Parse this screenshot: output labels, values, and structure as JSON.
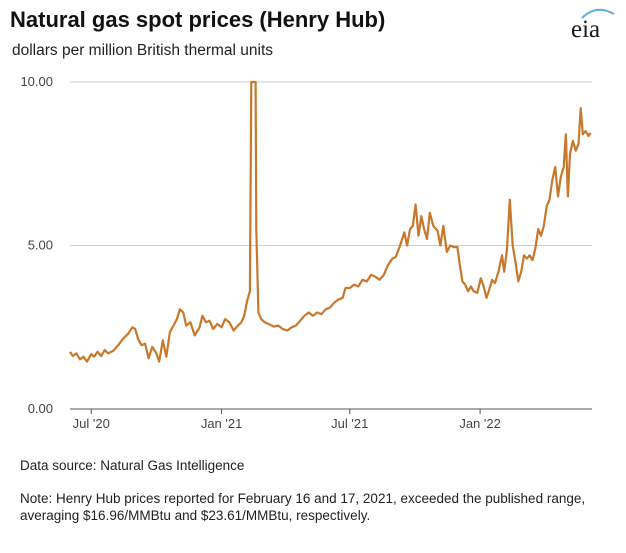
{
  "header": {
    "title": "Natural gas spot prices (Henry Hub)",
    "subtitle": "dollars per million British thermal units",
    "logo_text": "eia"
  },
  "footer": {
    "source": "Data source: Natural Gas Intelligence",
    "note": "Note: Henry Hub prices reported for February 16 and 17, 2021, exceeded the published range, averaging $16.96/MMBtu and $23.61/MMBtu, respectively."
  },
  "colors": {
    "line": "#c8782a",
    "grid": "#cccccc",
    "axis": "#555555",
    "logo_swoosh": "#6aaed6"
  },
  "chart_data": {
    "type": "line",
    "title": "Natural gas spot prices (Henry Hub)",
    "subtitle": "dollars per million British thermal units",
    "ylim": [
      0,
      10
    ],
    "xlim": [
      "2020-06-01",
      "2022-06-08"
    ],
    "yticks": [
      0,
      5,
      10
    ],
    "ytick_labels": [
      "0.00",
      "5.00",
      "10.00"
    ],
    "xticks": [
      "2020-07-01",
      "2021-01-01",
      "2021-07-01",
      "2022-01-01"
    ],
    "xtick_labels": [
      "Jul '20",
      "Jan '21",
      "Jul '21",
      "Jan '22"
    ],
    "grid": "horizontal",
    "series": [
      {
        "color": "#c8782a",
        "points": [
          [
            "2020-06-01",
            1.75
          ],
          [
            "2020-06-05",
            1.62
          ],
          [
            "2020-06-10",
            1.7
          ],
          [
            "2020-06-15",
            1.52
          ],
          [
            "2020-06-20",
            1.6
          ],
          [
            "2020-06-25",
            1.45
          ],
          [
            "2020-07-01",
            1.68
          ],
          [
            "2020-07-05",
            1.6
          ],
          [
            "2020-07-10",
            1.75
          ],
          [
            "2020-07-15",
            1.62
          ],
          [
            "2020-07-20",
            1.8
          ],
          [
            "2020-07-25",
            1.7
          ],
          [
            "2020-08-01",
            1.78
          ],
          [
            "2020-08-08",
            1.95
          ],
          [
            "2020-08-15",
            2.15
          ],
          [
            "2020-08-22",
            2.3
          ],
          [
            "2020-08-28",
            2.5
          ],
          [
            "2020-09-01",
            2.45
          ],
          [
            "2020-09-05",
            2.15
          ],
          [
            "2020-09-10",
            1.95
          ],
          [
            "2020-09-15",
            2.0
          ],
          [
            "2020-09-20",
            1.55
          ],
          [
            "2020-09-25",
            1.9
          ],
          [
            "2020-10-01",
            1.7
          ],
          [
            "2020-10-05",
            1.45
          ],
          [
            "2020-10-10",
            2.1
          ],
          [
            "2020-10-15",
            1.6
          ],
          [
            "2020-10-20",
            2.35
          ],
          [
            "2020-10-25",
            2.55
          ],
          [
            "2020-10-30",
            2.75
          ],
          [
            "2020-11-03",
            3.05
          ],
          [
            "2020-11-08",
            2.95
          ],
          [
            "2020-11-12",
            2.55
          ],
          [
            "2020-11-18",
            2.65
          ],
          [
            "2020-11-24",
            2.25
          ],
          [
            "2020-12-01",
            2.5
          ],
          [
            "2020-12-05",
            2.85
          ],
          [
            "2020-12-10",
            2.65
          ],
          [
            "2020-12-15",
            2.7
          ],
          [
            "2020-12-20",
            2.45
          ],
          [
            "2020-12-26",
            2.6
          ],
          [
            "2021-01-01",
            2.5
          ],
          [
            "2021-01-06",
            2.75
          ],
          [
            "2021-01-12",
            2.65
          ],
          [
            "2021-01-18",
            2.4
          ],
          [
            "2021-01-24",
            2.55
          ],
          [
            "2021-01-29",
            2.65
          ],
          [
            "2021-02-02",
            2.85
          ],
          [
            "2021-02-06",
            3.3
          ],
          [
            "2021-02-10",
            3.6
          ],
          [
            "2021-02-12",
            10.0
          ],
          [
            "2021-02-18",
            10.0
          ],
          [
            "2021-02-19",
            5.5
          ],
          [
            "2021-02-22",
            2.95
          ],
          [
            "2021-02-26",
            2.75
          ],
          [
            "2021-03-03",
            2.65
          ],
          [
            "2021-03-10",
            2.58
          ],
          [
            "2021-03-16",
            2.52
          ],
          [
            "2021-03-22",
            2.55
          ],
          [
            "2021-03-28",
            2.45
          ],
          [
            "2021-04-04",
            2.4
          ],
          [
            "2021-04-10",
            2.5
          ],
          [
            "2021-04-16",
            2.55
          ],
          [
            "2021-04-22",
            2.7
          ],
          [
            "2021-04-28",
            2.85
          ],
          [
            "2021-05-04",
            2.95
          ],
          [
            "2021-05-10",
            2.85
          ],
          [
            "2021-05-16",
            2.95
          ],
          [
            "2021-05-22",
            2.9
          ],
          [
            "2021-05-28",
            3.05
          ],
          [
            "2021-06-03",
            3.1
          ],
          [
            "2021-06-09",
            3.25
          ],
          [
            "2021-06-15",
            3.35
          ],
          [
            "2021-06-21",
            3.4
          ],
          [
            "2021-06-25",
            3.7
          ],
          [
            "2021-07-01",
            3.7
          ],
          [
            "2021-07-07",
            3.8
          ],
          [
            "2021-07-13",
            3.75
          ],
          [
            "2021-07-19",
            3.95
          ],
          [
            "2021-07-25",
            3.9
          ],
          [
            "2021-07-31",
            4.1
          ],
          [
            "2021-08-06",
            4.05
          ],
          [
            "2021-08-12",
            3.95
          ],
          [
            "2021-08-18",
            4.1
          ],
          [
            "2021-08-24",
            4.4
          ],
          [
            "2021-08-30",
            4.6
          ],
          [
            "2021-09-04",
            4.65
          ],
          [
            "2021-09-10",
            5.0
          ],
          [
            "2021-09-16",
            5.4
          ],
          [
            "2021-09-20",
            5.0
          ],
          [
            "2021-09-24",
            5.5
          ],
          [
            "2021-09-28",
            5.6
          ],
          [
            "2021-10-02",
            6.25
          ],
          [
            "2021-10-06",
            5.3
          ],
          [
            "2021-10-10",
            5.9
          ],
          [
            "2021-10-14",
            5.5
          ],
          [
            "2021-10-18",
            5.2
          ],
          [
            "2021-10-22",
            6.0
          ],
          [
            "2021-10-27",
            5.6
          ],
          [
            "2021-11-02",
            5.45
          ],
          [
            "2021-11-06",
            5.0
          ],
          [
            "2021-11-10",
            5.6
          ],
          [
            "2021-11-15",
            4.8
          ],
          [
            "2021-11-20",
            5.0
          ],
          [
            "2021-11-25",
            4.95
          ],
          [
            "2021-11-30",
            4.95
          ],
          [
            "2021-12-03",
            4.45
          ],
          [
            "2021-12-07",
            3.9
          ],
          [
            "2021-12-11",
            3.8
          ],
          [
            "2021-12-15",
            3.6
          ],
          [
            "2021-12-19",
            3.75
          ],
          [
            "2021-12-23",
            3.6
          ],
          [
            "2021-12-28",
            3.55
          ],
          [
            "2022-01-02",
            4.0
          ],
          [
            "2022-01-06",
            3.75
          ],
          [
            "2022-01-10",
            3.4
          ],
          [
            "2022-01-14",
            3.65
          ],
          [
            "2022-01-18",
            3.95
          ],
          [
            "2022-01-22",
            3.85
          ],
          [
            "2022-01-27",
            4.2
          ],
          [
            "2022-02-01",
            4.7
          ],
          [
            "2022-02-04",
            4.2
          ],
          [
            "2022-02-08",
            4.9
          ],
          [
            "2022-02-12",
            6.4
          ],
          [
            "2022-02-16",
            5.0
          ],
          [
            "2022-02-20",
            4.5
          ],
          [
            "2022-02-24",
            3.9
          ],
          [
            "2022-02-28",
            4.2
          ],
          [
            "2022-03-04",
            4.7
          ],
          [
            "2022-03-08",
            4.6
          ],
          [
            "2022-03-12",
            4.7
          ],
          [
            "2022-03-16",
            4.55
          ],
          [
            "2022-03-20",
            4.9
          ],
          [
            "2022-03-24",
            5.5
          ],
          [
            "2022-03-28",
            5.3
          ],
          [
            "2022-04-01",
            5.6
          ],
          [
            "2022-04-05",
            6.2
          ],
          [
            "2022-04-09",
            6.4
          ],
          [
            "2022-04-13",
            7.0
          ],
          [
            "2022-04-17",
            7.4
          ],
          [
            "2022-04-21",
            6.5
          ],
          [
            "2022-04-25",
            7.1
          ],
          [
            "2022-04-29",
            7.4
          ],
          [
            "2022-05-02",
            8.4
          ],
          [
            "2022-05-05",
            6.5
          ],
          [
            "2022-05-08",
            7.8
          ],
          [
            "2022-05-12",
            8.2
          ],
          [
            "2022-05-16",
            7.9
          ],
          [
            "2022-05-20",
            8.1
          ],
          [
            "2022-05-23",
            9.2
          ],
          [
            "2022-05-26",
            8.4
          ],
          [
            "2022-05-30",
            8.5
          ],
          [
            "2022-06-03",
            8.35
          ],
          [
            "2022-06-06",
            8.45
          ]
        ]
      }
    ]
  }
}
